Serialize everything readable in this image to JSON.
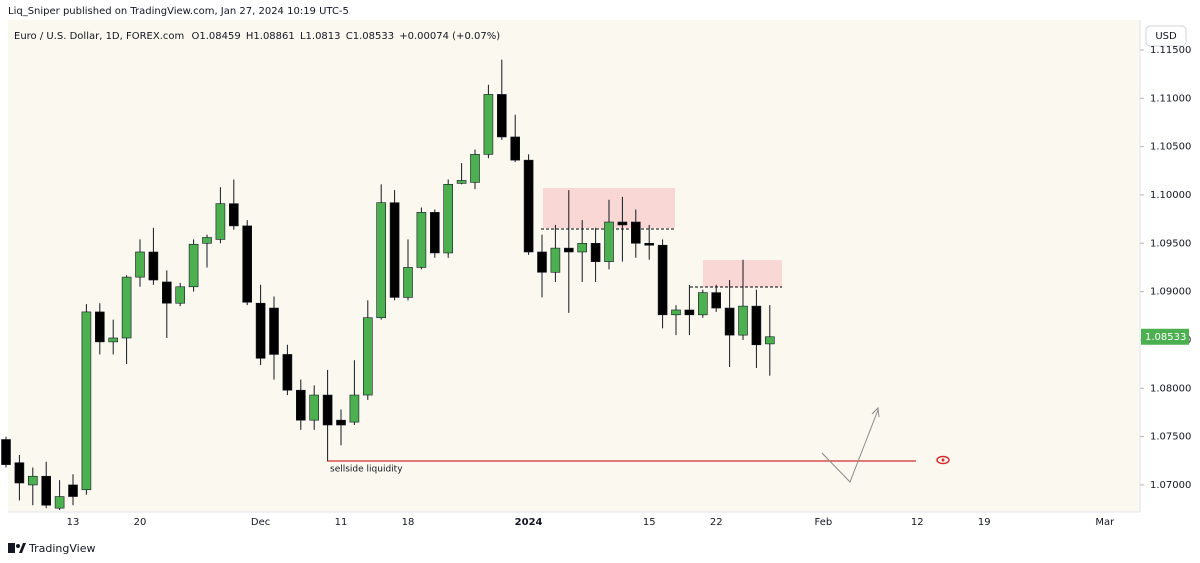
{
  "publisher": "Liq_Sniper published on TradingView.com, Jan 27, 2024 10:19 UTC-5",
  "currency_button": "USD",
  "brand": "TradingView",
  "chart_data": {
    "type": "candlestick",
    "symbol": "Euro / U.S. Dollar, 1D, FOREX.com",
    "ohlc_labels": [
      "O",
      "H",
      "L",
      "C"
    ],
    "change": "+0.00074 (+0.07%)",
    "annotation": "sellside liquidity",
    "up_color": "#4caf50",
    "down_color": "#000000",
    "grid": false,
    "categories": [
      null,
      null,
      null,
      null,
      null,
      "13",
      null,
      null,
      null,
      null,
      "20",
      null,
      null,
      null,
      null,
      null,
      null,
      null,
      null,
      "Dec",
      null,
      null,
      null,
      null,
      null,
      "11",
      null,
      null,
      null,
      null,
      "18",
      null,
      null,
      null,
      null,
      null,
      null,
      null,
      null,
      "2024",
      null,
      null,
      null,
      null,
      null,
      null,
      null,
      null,
      "15",
      null,
      null,
      null,
      null,
      "22",
      null,
      null,
      null,
      null,
      null,
      null,
      null,
      "Feb",
      null,
      null,
      null,
      null,
      null,
      null,
      "12",
      null,
      null,
      null,
      null,
      "19",
      null,
      null,
      null,
      null,
      null,
      null,
      null,
      null,
      "Mar"
    ],
    "open": [
      1.0747,
      1.0723,
      1.07,
      1.0709,
      1.0676,
      1.07,
      1.0695,
      1.0879,
      1.0848,
      1.0852,
      1.0915,
      1.0941,
      1.091,
      1.0888,
      1.0905,
      1.095,
      1.0954,
      1.0991,
      1.0968,
      1.0888,
      1.0883,
      1.0835,
      1.0798,
      1.0767,
      1.0793,
      1.0767,
      1.0765,
      1.0793,
      1.0873,
      1.0992,
      1.0894,
      1.0925,
      1.0982,
      1.094,
      1.1012,
      1.1013,
      1.1042,
      1.1104,
      1.106,
      1.1036,
      1.0941,
      1.092,
      1.0945,
      1.0941,
      1.095,
      1.0931,
      1.0972,
      1.0972,
      1.095,
      1.0948,
      1.0876,
      1.0881,
      1.0876,
      1.0899,
      1.0883,
      1.0855,
      1.0885,
      1.08459,
      null,
      null,
      null,
      null,
      null,
      null,
      null,
      null,
      null,
      null,
      null,
      null,
      null,
      null,
      null,
      null,
      null,
      null,
      null,
      null,
      null,
      null,
      null,
      null,
      null
    ],
    "high": [
      1.075,
      1.0731,
      1.0718,
      1.0724,
      1.0705,
      1.0711,
      1.0887,
      1.0888,
      1.0871,
      1.0917,
      1.0954,
      1.0966,
      1.0922,
      1.0909,
      1.0954,
      1.0959,
      1.1008,
      1.1016,
      1.0974,
      1.0907,
      1.0895,
      1.0845,
      1.0809,
      1.0803,
      1.0819,
      1.0778,
      1.0829,
      1.0891,
      1.1011,
      1.1005,
      1.0954,
      1.0987,
      1.0985,
      1.1016,
      1.1033,
      1.1047,
      1.1114,
      1.114,
      1.1083,
      1.1042,
      1.0959,
      1.0969,
      1.1005,
      1.0974,
      1.0966,
      1.0995,
      1.0998,
      1.0985,
      1.0969,
      1.0954,
      1.0886,
      1.0907,
      1.0902,
      1.0907,
      1.0912,
      1.0933,
      1.0902,
      1.08861,
      null,
      null,
      null,
      null,
      null,
      null,
      null,
      null,
      null,
      null,
      null,
      null,
      null,
      null,
      null,
      null,
      null,
      null,
      null,
      null,
      null,
      null,
      null,
      null,
      null
    ],
    "low": [
      1.0718,
      1.0684,
      1.0679,
      1.0676,
      1.0674,
      1.0679,
      1.069,
      1.0835,
      1.0835,
      1.0825,
      1.0905,
      1.0907,
      1.0852,
      1.0885,
      1.09,
      1.0925,
      1.095,
      1.0964,
      1.0886,
      1.0824,
      1.0809,
      1.0793,
      1.0757,
      1.0757,
      1.0725,
      1.0741,
      1.0762,
      1.0788,
      1.0871,
      1.0891,
      1.0891,
      1.0923,
      1.0935,
      1.0935,
      1.1011,
      1.1006,
      1.1038,
      1.1057,
      1.1034,
      1.0938,
      1.0894,
      1.091,
      1.0878,
      1.091,
      1.091,
      1.0923,
      1.0931,
      1.0935,
      1.0933,
      1.0862,
      1.0855,
      1.0855,
      1.0873,
      1.0879,
      1.0822,
      1.085,
      1.0821,
      1.0813,
      null,
      null,
      null,
      null,
      null,
      null,
      null,
      null,
      null,
      null,
      null,
      null,
      null,
      null,
      null,
      null,
      null,
      null,
      null,
      null,
      null,
      null,
      null,
      null,
      null
    ],
    "close": [
      1.0721,
      1.0702,
      1.0709,
      1.0679,
      1.0688,
      1.0688,
      1.0879,
      1.0848,
      1.0852,
      1.0915,
      1.0941,
      1.0912,
      1.0888,
      1.0905,
      1.0949,
      1.0956,
      1.0991,
      1.0968,
      1.0889,
      1.0831,
      1.0835,
      1.0798,
      1.0767,
      1.0793,
      1.0762,
      1.0762,
      1.0793,
      1.0873,
      1.0992,
      1.0894,
      1.0925,
      1.0982,
      1.094,
      1.1011,
      1.1015,
      1.1042,
      1.1104,
      1.106,
      1.1036,
      1.0941,
      1.092,
      1.0945,
      1.0941,
      1.095,
      1.0931,
      1.0972,
      1.0969,
      1.095,
      1.0948,
      1.0876,
      1.0881,
      1.0876,
      1.0899,
      1.0883,
      1.0855,
      1.0885,
      1.0845,
      1.08533,
      null,
      null,
      null,
      null,
      null,
      null,
      null,
      null,
      null,
      null,
      null,
      null,
      null,
      null,
      null,
      null,
      null,
      null,
      null,
      null,
      null,
      null,
      null,
      null,
      null
    ],
    "ylim": [
      1.0672,
      1.1181
    ],
    "yticks": [
      {
        "value": 1.07,
        "label": "1.07000"
      },
      {
        "value": 1.075,
        "label": "1.07500"
      },
      {
        "value": 1.08,
        "label": "1.08000"
      },
      {
        "value": 1.085,
        "label": "1.08500"
      },
      {
        "value": 1.09,
        "label": "1.09000"
      },
      {
        "value": 1.095,
        "label": "1.09500"
      },
      {
        "value": 1.1,
        "label": "1.10000"
      },
      {
        "value": 1.105,
        "label": "1.10500"
      },
      {
        "value": 1.11,
        "label": "1.11000"
      },
      {
        "value": 1.115,
        "label": "1.11500"
      }
    ]
  }
}
